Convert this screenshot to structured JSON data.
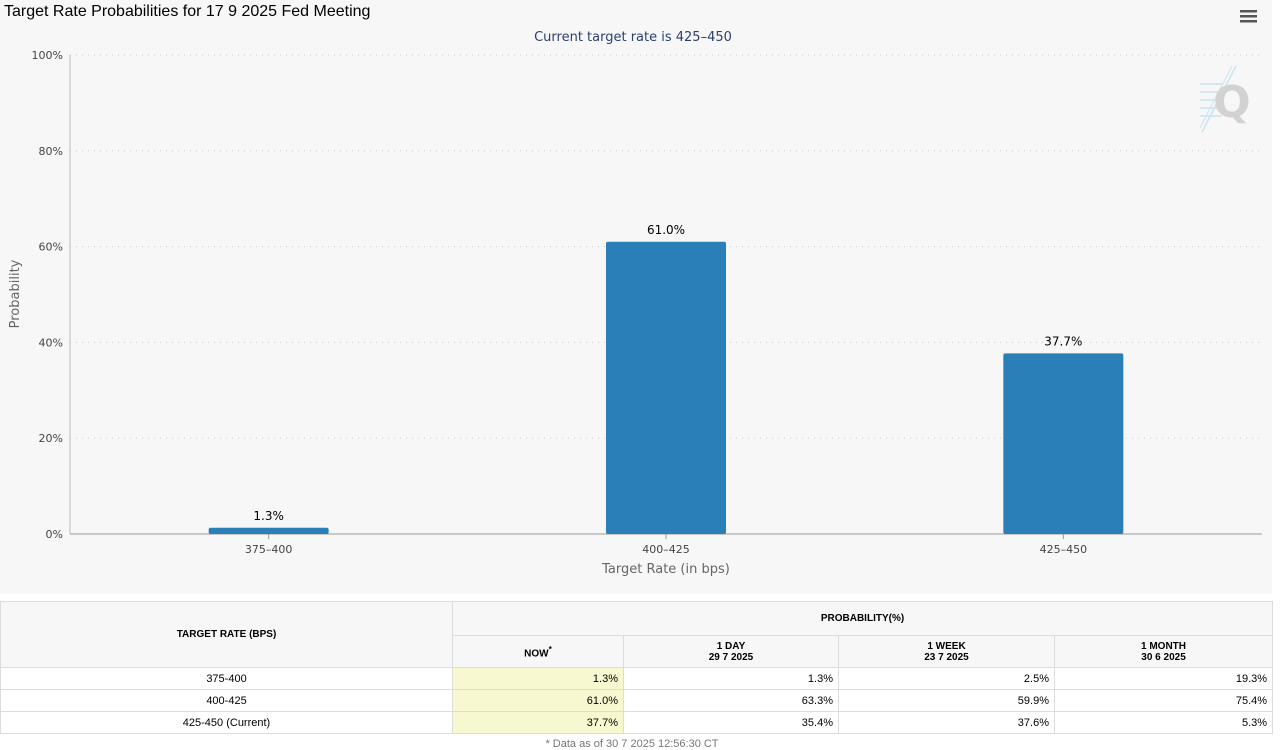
{
  "page": {
    "title": "Target Rate Probabilities for 17 9 2025 Fed Meeting"
  },
  "chart_data": {
    "type": "bar",
    "title": "Target Rate Probabilities for 17 9 2025 Fed Meeting",
    "subtitle": "Current target rate is 425–450",
    "categories": [
      "375–400",
      "400–425",
      "425–450"
    ],
    "values": [
      1.3,
      61.0,
      37.7
    ],
    "data_labels": [
      "1.3%",
      "61.0%",
      "37.7%"
    ],
    "xlabel": "Target Rate (in bps)",
    "ylabel": "Probability",
    "ylim": [
      0,
      100
    ],
    "y_ticks": [
      0,
      20,
      40,
      60,
      80,
      100
    ],
    "y_tick_labels": [
      "0%",
      "20%",
      "40%",
      "60%",
      "80%",
      "100%"
    ],
    "grid": true,
    "bar_color": "#2b7fb8"
  },
  "table": {
    "rate_header": "TARGET RATE (BPS)",
    "probability_header": "PROBABILITY(%)",
    "columns": [
      {
        "label": "NOW",
        "marker": "*",
        "date": ""
      },
      {
        "label": "1 DAY",
        "marker": "",
        "date": "29 7 2025"
      },
      {
        "label": "1 WEEK",
        "marker": "",
        "date": "23 7 2025"
      },
      {
        "label": "1 MONTH",
        "marker": "",
        "date": "30 6 2025"
      }
    ],
    "rows": [
      {
        "rate": "375-400",
        "values": [
          "1.3%",
          "1.3%",
          "2.5%",
          "19.3%"
        ]
      },
      {
        "rate": "400-425",
        "values": [
          "61.0%",
          "63.3%",
          "59.9%",
          "75.4%"
        ]
      },
      {
        "rate": "425-450 (Current)",
        "values": [
          "37.7%",
          "35.4%",
          "37.6%",
          "5.3%"
        ]
      }
    ]
  },
  "footnote": "* Data as of 30 7 2025 12:56:30 CT"
}
